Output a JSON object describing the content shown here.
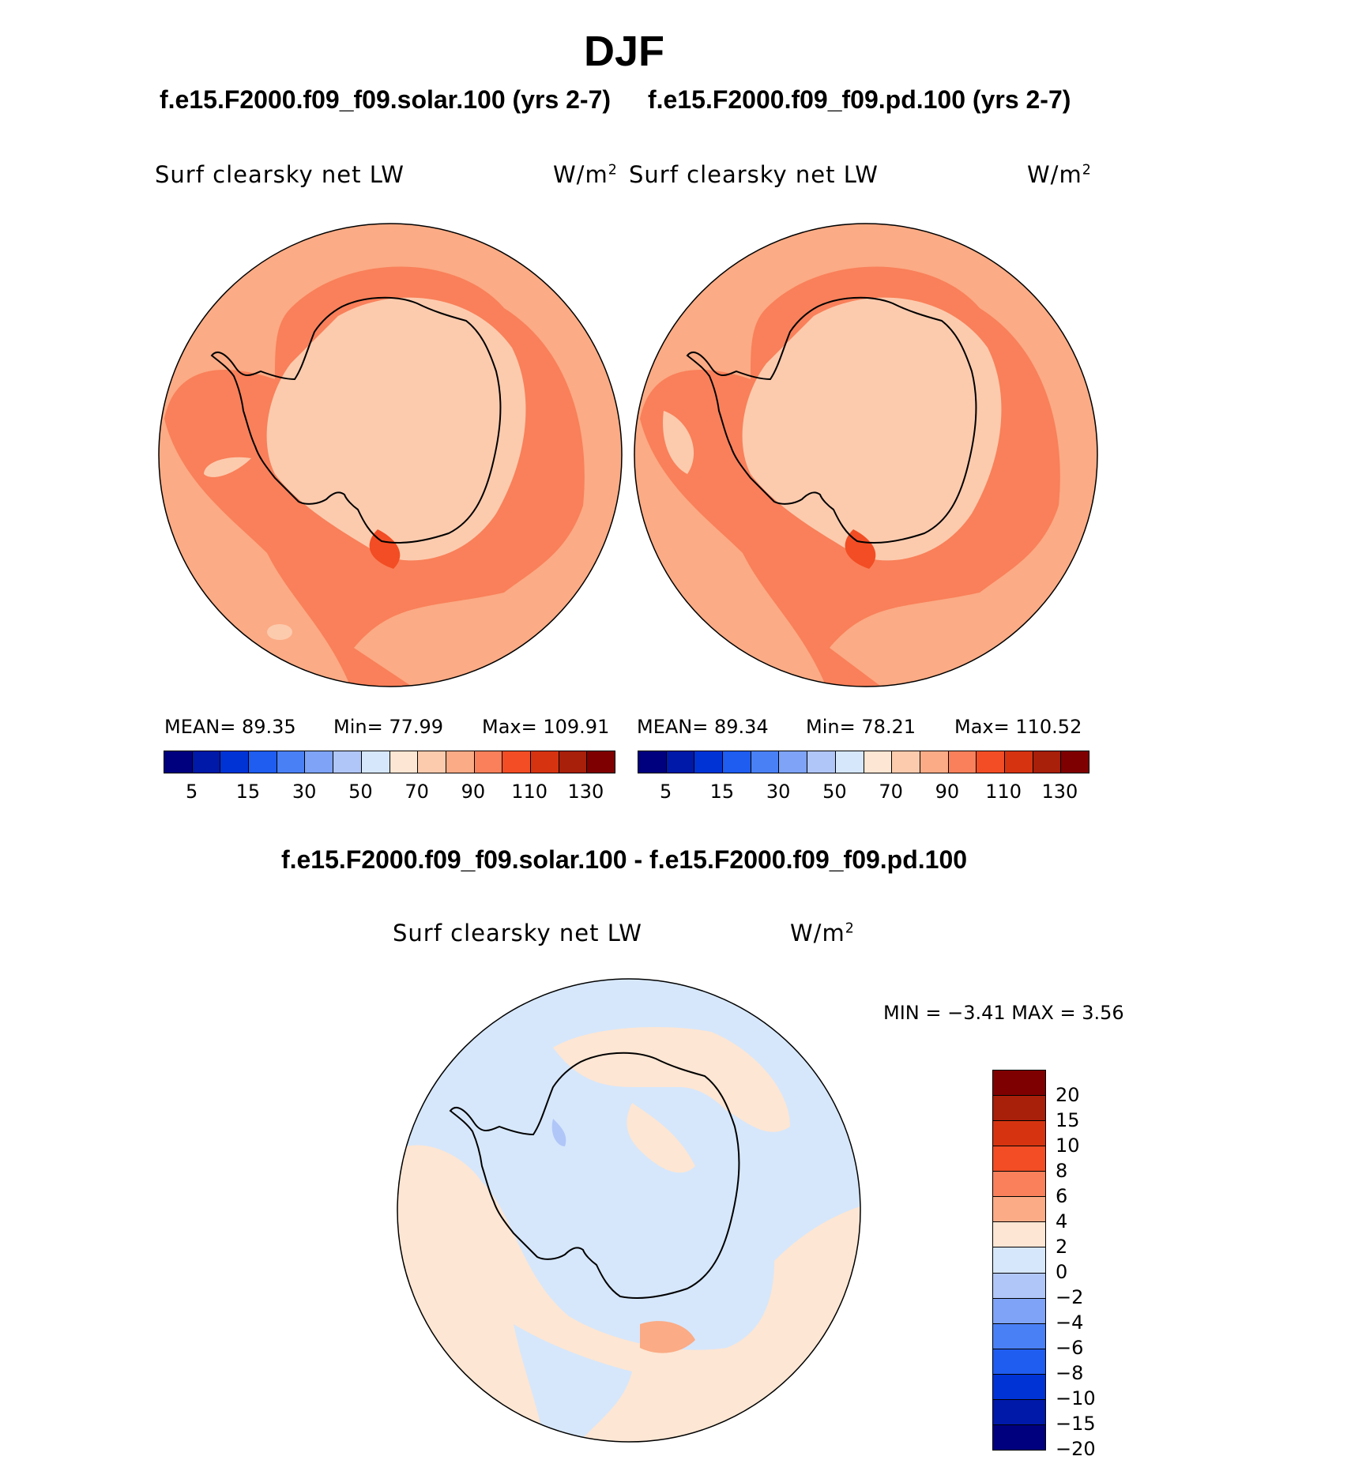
{
  "season": "DJF",
  "case1_title": "f.e15.F2000.f09_f09.solar.100 (yrs 2-7)",
  "case2_title": "f.e15.F2000.f09_f09.pd.100 (yrs 2-7)",
  "diff_title": "f.e15.F2000.f09_f09.solar.100 - f.e15.F2000.f09_f09.pd.100",
  "variable": "Surf clearsky net LW",
  "units": "W/m",
  "units_exp": "2",
  "panel1": {
    "mean": "MEAN=   89.35",
    "min": "Min=   77.99",
    "max": "Max=  109.91"
  },
  "panel2": {
    "mean": "MEAN=   89.34",
    "min": "Min=   78.21",
    "max": "Max=  110.52"
  },
  "diff_minmax": "MIN =   −3.41  MAX =    3.56",
  "abs_ticks": [
    "5",
    "15",
    "30",
    "50",
    "70",
    "90",
    "110",
    "130"
  ],
  "abs_colors": [
    "#00007f",
    "#0019a8",
    "#0033d6",
    "#1f5cf0",
    "#4a80f5",
    "#7ea3f7",
    "#b0c6f8",
    "#d6e7fb",
    "#fde6d3",
    "#fccbae",
    "#fbab85",
    "#f9805a",
    "#f24d24",
    "#d63410",
    "#a81f0a",
    "#7f0000"
  ],
  "diff_ticks": [
    "20",
    "15",
    "10",
    "8",
    "6",
    "4",
    "2",
    "0",
    "−2",
    "−4",
    "−6",
    "−8",
    "−10",
    "−15",
    "−20"
  ],
  "diff_colors": [
    "#7f0000",
    "#a81f0a",
    "#d63410",
    "#f24d24",
    "#f9805a",
    "#fbab85",
    "#fde6d3",
    "#d6e7fb",
    "#b0c6f8",
    "#7ea3f7",
    "#4a80f5",
    "#1f5cf0",
    "#0033d6",
    "#0019a8",
    "#00007f"
  ],
  "map_colors": {
    "bg_abs": "#fbab85",
    "mid_abs": "#f9805a",
    "hi_abs": "#f24d24",
    "low_abs": "#fccbae",
    "bg_diff": "#d6e7fb",
    "pos_diff": "#fde6d3",
    "hi_diff": "#fbab85",
    "neg_diff": "#b0c6f8"
  },
  "chart_data": {
    "type": "heatmap",
    "panels": [
      {
        "title": "f.e15.F2000.f09_f09.solar.100 (yrs 2-7)",
        "variable": "Surf clearsky net LW",
        "units": "W/m2",
        "mean": 89.35,
        "min": 77.99,
        "max": 109.91,
        "levels": [
          5,
          10,
          15,
          20,
          30,
          40,
          50,
          60,
          70,
          80,
          90,
          100,
          110,
          120,
          130
        ]
      },
      {
        "title": "f.e15.F2000.f09_f09.pd.100 (yrs 2-7)",
        "variable": "Surf clearsky net LW",
        "units": "W/m2",
        "mean": 89.34,
        "min": 78.21,
        "max": 110.52,
        "levels": [
          5,
          10,
          15,
          20,
          30,
          40,
          50,
          60,
          70,
          80,
          90,
          100,
          110,
          120,
          130
        ]
      },
      {
        "title": "f.e15.F2000.f09_f09.solar.100 - f.e15.F2000.f09_f09.pd.100",
        "variable": "Surf clearsky net LW",
        "units": "W/m2",
        "min": -3.41,
        "max": 3.56,
        "levels": [
          -20,
          -15,
          -10,
          -8,
          -6,
          -4,
          -2,
          0,
          2,
          4,
          6,
          8,
          10,
          15,
          20
        ]
      }
    ]
  }
}
